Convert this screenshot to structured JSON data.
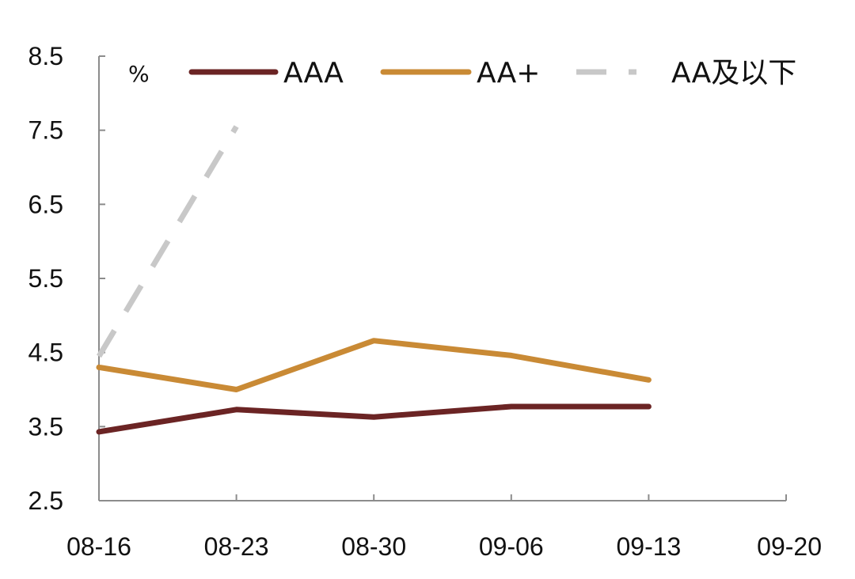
{
  "chart_data": {
    "type": "line",
    "unit": "%",
    "categories": [
      "08-16",
      "08-23",
      "08-30",
      "09-06",
      "09-13",
      "09-20"
    ],
    "ylim": [
      2.5,
      8.5
    ],
    "yticks": [
      "8.5",
      "7.5",
      "6.5",
      "5.5",
      "4.5",
      "3.5",
      "2.5"
    ],
    "grid": false,
    "legend_position": "top",
    "series": [
      {
        "name": "AAA",
        "color": "#6b2424",
        "dash": "solid",
        "values": [
          3.43,
          3.73,
          3.63,
          3.77,
          3.77,
          null
        ]
      },
      {
        "name": "AA+",
        "color": "#c98a35",
        "dash": "solid",
        "values": [
          4.3,
          4.0,
          4.66,
          4.46,
          4.13,
          null
        ]
      },
      {
        "name": "AA及以下",
        "color": "#c8c8c8",
        "dash": "dashed",
        "values": [
          4.45,
          7.55,
          null,
          null,
          null,
          null
        ]
      }
    ]
  }
}
